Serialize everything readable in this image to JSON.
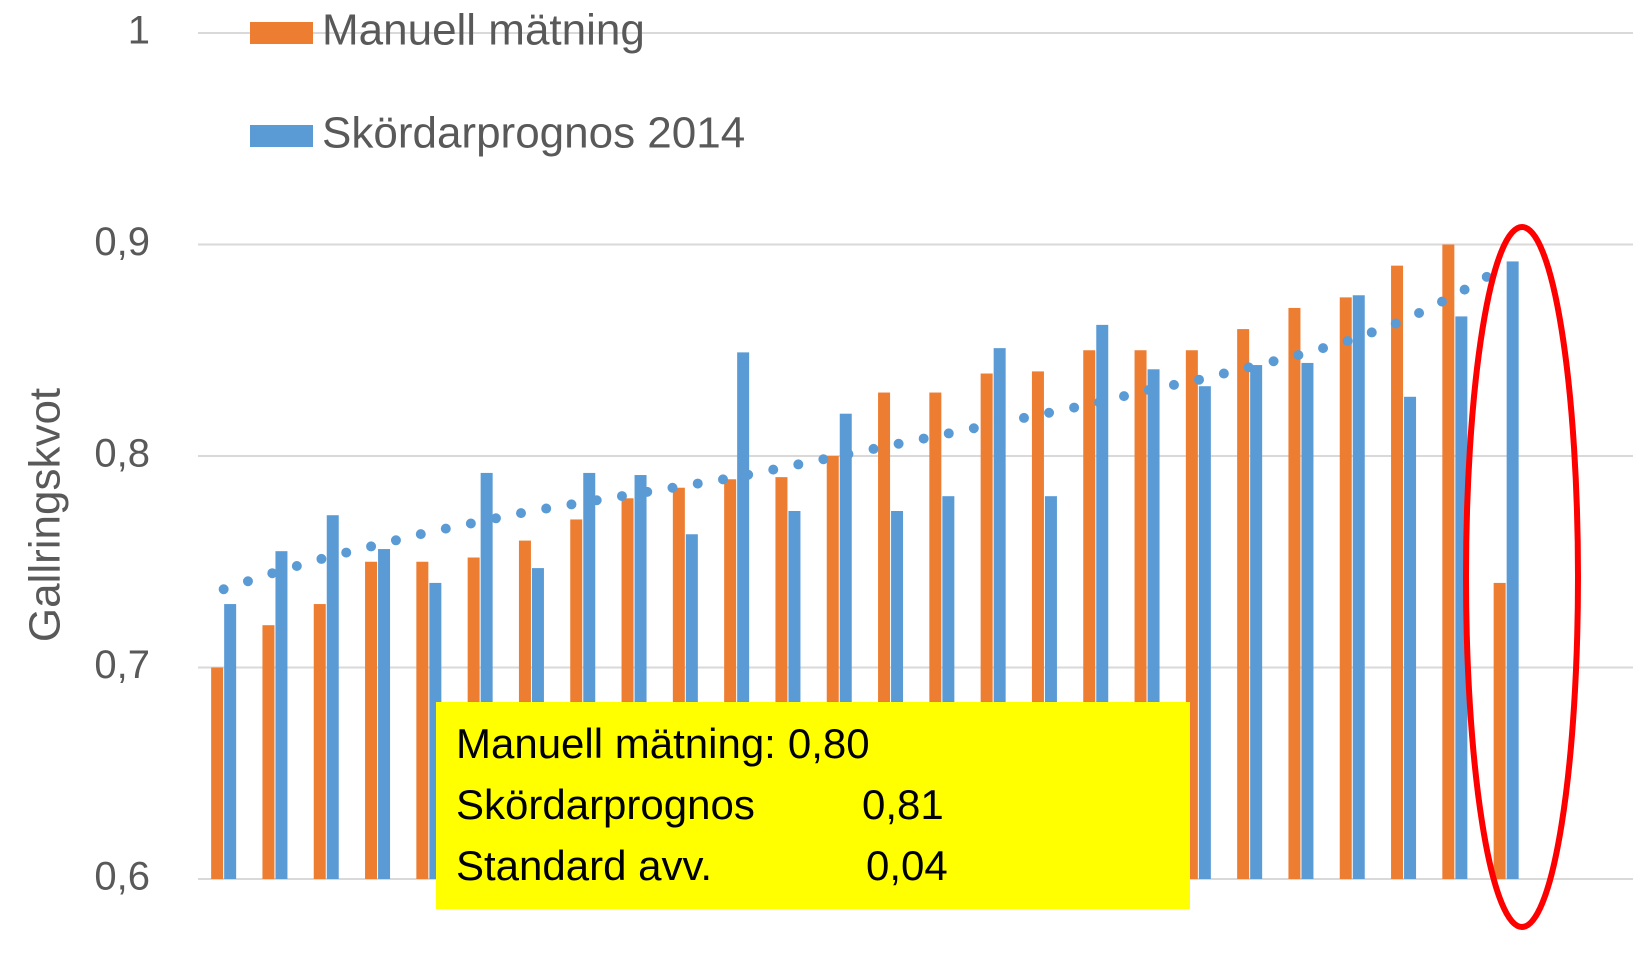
{
  "chart_data": {
    "type": "bar",
    "y_label": "Gallringskvot",
    "categories": [
      null,
      null,
      null,
      null,
      null,
      null,
      null,
      null,
      null,
      null,
      null,
      null,
      null,
      null,
      null,
      null,
      null,
      null,
      null,
      null,
      null,
      null,
      null,
      null,
      null,
      null
    ],
    "series": [
      {
        "name": "Manuell mätning",
        "color": "#ed7d31",
        "values": [
          0.7,
          0.72,
          0.73,
          0.75,
          0.75,
          0.752,
          0.76,
          0.77,
          0.78,
          0.785,
          0.789,
          0.79,
          0.8,
          0.83,
          0.83,
          0.839,
          0.84,
          0.85,
          0.85,
          0.85,
          0.86,
          0.87,
          0.875,
          0.89,
          0.9,
          0.74
        ]
      },
      {
        "name": "Skördarprognos 2014",
        "color": "#5b9bd5",
        "values": [
          0.73,
          0.755,
          0.772,
          0.756,
          0.74,
          0.792,
          0.747,
          0.792,
          0.791,
          0.763,
          0.849,
          0.774,
          0.82,
          0.774,
          0.781,
          0.851,
          0.781,
          0.862,
          0.841,
          0.833,
          0.843,
          0.844,
          0.876,
          0.828,
          0.866,
          0.892
        ]
      }
    ],
    "trendline": {
      "color": "#5b9bd5",
      "values": [
        0.737,
        0.745,
        0.752,
        0.758,
        0.764,
        0.769,
        0.774,
        0.778,
        0.782,
        0.786,
        0.79,
        0.795,
        0.8,
        0.805,
        0.81,
        0.815,
        0.82,
        0.825,
        0.831,
        0.836,
        0.842,
        0.848,
        0.855,
        0.864,
        0.876,
        0.89
      ]
    },
    "ylim": [
      0.6,
      1
    ],
    "yticks": [
      {
        "value": 0.6,
        "label": "0,6"
      },
      {
        "value": 0.7,
        "label": "0,7"
      },
      {
        "value": 0.8,
        "label": "0,8"
      },
      {
        "value": 0.9,
        "label": "0,9"
      },
      1
    ],
    "grid": true,
    "legend": "top-left",
    "annotation": {
      "color": "#ffff00",
      "lines": [
        {
          "label": "Manuell mätning:",
          "value": "0,80"
        },
        {
          "label": "Skördarprognos",
          "value": "0,81"
        },
        {
          "label": "Standard avv.",
          "value": "0,04"
        }
      ]
    }
  }
}
